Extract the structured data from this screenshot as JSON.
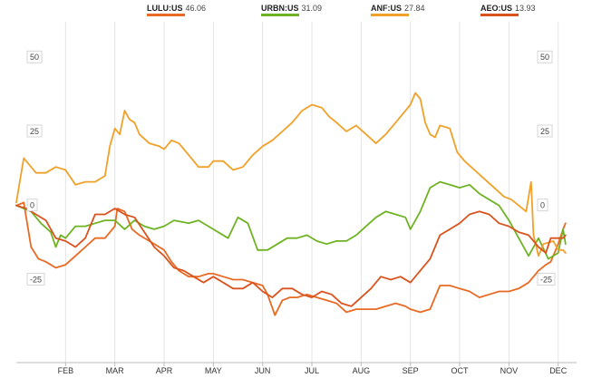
{
  "chart_data": {
    "type": "line",
    "title": "",
    "xlabel": "",
    "ylabel": "",
    "x_range": [
      0,
      11.3
    ],
    "ylim": [
      -53,
      62
    ],
    "y_ticks": [
      50,
      25,
      0,
      -25
    ],
    "y_tick_labels": [
      "50",
      "25",
      "0",
      "-25"
    ],
    "x_ticks": [
      1,
      2,
      3,
      4,
      5,
      6,
      7,
      8,
      9,
      10,
      11
    ],
    "x_tick_labels": [
      "FEB",
      "MAR",
      "APR",
      "MAY",
      "JUN",
      "JUL",
      "AUG",
      "SEP",
      "OCT",
      "NOV",
      "DEC"
    ],
    "legend_position": "top",
    "grid": true,
    "series": [
      {
        "name": "LULU:US",
        "value_label": "46.06",
        "color": "#e86a24",
        "points": [
          [
            0,
            0
          ],
          [
            0.15,
            1
          ],
          [
            0.3,
            -14
          ],
          [
            0.45,
            -18
          ],
          [
            0.6,
            -19
          ],
          [
            0.8,
            -21
          ],
          [
            1,
            -20
          ],
          [
            1.2,
            -17
          ],
          [
            1.4,
            -14
          ],
          [
            1.6,
            -11
          ],
          [
            1.8,
            -11
          ],
          [
            2,
            -7
          ],
          [
            2.05,
            -1
          ],
          [
            2.2,
            -2
          ],
          [
            2.35,
            -8
          ],
          [
            2.5,
            -10
          ],
          [
            2.7,
            -12
          ],
          [
            2.9,
            -14
          ],
          [
            3,
            -15
          ],
          [
            3.15,
            -19
          ],
          [
            3.3,
            -22
          ],
          [
            3.5,
            -24
          ],
          [
            3.7,
            -24
          ],
          [
            3.9,
            -23
          ],
          [
            4,
            -23
          ],
          [
            4.2,
            -24
          ],
          [
            4.4,
            -25
          ],
          [
            4.6,
            -25
          ],
          [
            4.8,
            -26
          ],
          [
            5,
            -27
          ],
          [
            5.1,
            -30
          ],
          [
            5.25,
            -37
          ],
          [
            5.4,
            -32
          ],
          [
            5.55,
            -31
          ],
          [
            5.7,
            -31
          ],
          [
            5.9,
            -30
          ],
          [
            6.1,
            -31
          ],
          [
            6.3,
            -32
          ],
          [
            6.5,
            -33
          ],
          [
            6.7,
            -36
          ],
          [
            6.9,
            -35
          ],
          [
            7.1,
            -35
          ],
          [
            7.3,
            -35
          ],
          [
            7.5,
            -34
          ],
          [
            7.7,
            -33
          ],
          [
            7.9,
            -34
          ],
          [
            8,
            -35
          ],
          [
            8.2,
            -36
          ],
          [
            8.4,
            -35
          ],
          [
            8.6,
            -27
          ],
          [
            8.8,
            -27
          ],
          [
            9,
            -28
          ],
          [
            9.2,
            -29
          ],
          [
            9.4,
            -31
          ],
          [
            9.6,
            -30
          ],
          [
            9.8,
            -29
          ],
          [
            10,
            -29
          ],
          [
            10.2,
            -28
          ],
          [
            10.4,
            -26
          ],
          [
            10.6,
            -22
          ],
          [
            10.75,
            -20
          ],
          [
            10.85,
            -19
          ],
          [
            11.0,
            -13
          ],
          [
            11.1,
            -8
          ],
          [
            11.15,
            -6
          ]
        ]
      },
      {
        "name": "URBN:US",
        "value_label": "31.09",
        "color": "#6fb325",
        "points": [
          [
            0,
            0
          ],
          [
            0.3,
            -2
          ],
          [
            0.5,
            -6
          ],
          [
            0.7,
            -9
          ],
          [
            0.8,
            -14
          ],
          [
            0.9,
            -10
          ],
          [
            1,
            -11
          ],
          [
            1.2,
            -7
          ],
          [
            1.4,
            -7
          ],
          [
            1.6,
            -6
          ],
          [
            1.8,
            -5
          ],
          [
            2,
            -5
          ],
          [
            2.2,
            -8
          ],
          [
            2.4,
            -5
          ],
          [
            2.6,
            -7
          ],
          [
            2.8,
            -8
          ],
          [
            3,
            -7
          ],
          [
            3.2,
            -5
          ],
          [
            3.5,
            -6
          ],
          [
            3.7,
            -5
          ],
          [
            4,
            -8
          ],
          [
            4.3,
            -11
          ],
          [
            4.5,
            -4
          ],
          [
            4.7,
            -6
          ],
          [
            4.9,
            -15
          ],
          [
            5.1,
            -15
          ],
          [
            5.3,
            -13
          ],
          [
            5.5,
            -11
          ],
          [
            5.7,
            -11
          ],
          [
            5.9,
            -10
          ],
          [
            6.1,
            -12
          ],
          [
            6.3,
            -13
          ],
          [
            6.5,
            -12
          ],
          [
            6.7,
            -12
          ],
          [
            6.9,
            -10
          ],
          [
            7.1,
            -7
          ],
          [
            7.3,
            -4
          ],
          [
            7.5,
            -2
          ],
          [
            7.7,
            -3
          ],
          [
            7.9,
            -4
          ],
          [
            8,
            -8
          ],
          [
            8.2,
            -2
          ],
          [
            8.4,
            6
          ],
          [
            8.6,
            8
          ],
          [
            8.8,
            7
          ],
          [
            9,
            6
          ],
          [
            9.2,
            7
          ],
          [
            9.4,
            4
          ],
          [
            9.6,
            2
          ],
          [
            9.8,
            0
          ],
          [
            10,
            -5
          ],
          [
            10.2,
            -11
          ],
          [
            10.4,
            -17
          ],
          [
            10.6,
            -11
          ],
          [
            10.8,
            -18
          ],
          [
            11,
            -16
          ],
          [
            11.1,
            -8
          ],
          [
            11.15,
            -13
          ]
        ]
      },
      {
        "name": "ANF:US",
        "value_label": "27.84",
        "color": "#f0a12a",
        "points": [
          [
            0,
            1
          ],
          [
            0.15,
            16
          ],
          [
            0.4,
            11
          ],
          [
            0.6,
            11
          ],
          [
            0.8,
            13
          ],
          [
            1,
            12
          ],
          [
            1.2,
            7
          ],
          [
            1.4,
            8
          ],
          [
            1.6,
            8
          ],
          [
            1.8,
            10
          ],
          [
            1.9,
            20
          ],
          [
            2,
            26
          ],
          [
            2.1,
            24
          ],
          [
            2.2,
            32
          ],
          [
            2.3,
            29
          ],
          [
            2.4,
            28
          ],
          [
            2.5,
            24
          ],
          [
            2.7,
            21
          ],
          [
            2.9,
            20
          ],
          [
            3,
            19
          ],
          [
            3.15,
            22
          ],
          [
            3.3,
            21
          ],
          [
            3.5,
            17
          ],
          [
            3.7,
            13
          ],
          [
            3.9,
            13
          ],
          [
            4,
            15
          ],
          [
            4.2,
            15
          ],
          [
            4.4,
            12
          ],
          [
            4.6,
            13
          ],
          [
            4.8,
            17
          ],
          [
            5,
            20
          ],
          [
            5.2,
            22
          ],
          [
            5.4,
            25
          ],
          [
            5.6,
            28
          ],
          [
            5.8,
            32
          ],
          [
            6,
            34
          ],
          [
            6.2,
            33
          ],
          [
            6.35,
            30
          ],
          [
            6.5,
            28
          ],
          [
            6.7,
            25
          ],
          [
            6.9,
            27
          ],
          [
            7.1,
            24
          ],
          [
            7.3,
            21
          ],
          [
            7.5,
            24
          ],
          [
            7.7,
            28
          ],
          [
            7.9,
            32
          ],
          [
            8,
            34
          ],
          [
            8.1,
            38
          ],
          [
            8.2,
            36
          ],
          [
            8.3,
            28
          ],
          [
            8.4,
            24
          ],
          [
            8.5,
            23
          ],
          [
            8.6,
            27
          ],
          [
            8.8,
            26
          ],
          [
            8.95,
            18
          ],
          [
            9.1,
            15
          ],
          [
            9.3,
            12
          ],
          [
            9.5,
            9
          ],
          [
            9.7,
            6
          ],
          [
            9.9,
            3
          ],
          [
            10.05,
            2
          ],
          [
            10.2,
            0
          ],
          [
            10.35,
            -2
          ],
          [
            10.45,
            8
          ],
          [
            10.5,
            -10
          ],
          [
            10.6,
            -17
          ],
          [
            10.7,
            -13
          ],
          [
            10.9,
            -12
          ],
          [
            11.0,
            -15
          ],
          [
            11.1,
            -15
          ],
          [
            11.15,
            -16
          ]
        ]
      },
      {
        "name": "AEO:US",
        "value_label": "13.93",
        "color": "#d9531e",
        "points": [
          [
            0,
            0
          ],
          [
            0.2,
            -1
          ],
          [
            0.4,
            -3
          ],
          [
            0.6,
            -5
          ],
          [
            0.8,
            -11
          ],
          [
            1,
            -12
          ],
          [
            1.2,
            -14
          ],
          [
            1.4,
            -11
          ],
          [
            1.6,
            -3
          ],
          [
            1.8,
            -3
          ],
          [
            2,
            -1
          ],
          [
            2.2,
            -3
          ],
          [
            2.4,
            -4
          ],
          [
            2.6,
            -9
          ],
          [
            2.8,
            -14
          ],
          [
            3,
            -17
          ],
          [
            3.2,
            -21
          ],
          [
            3.4,
            -22
          ],
          [
            3.6,
            -24
          ],
          [
            3.8,
            -26
          ],
          [
            4,
            -24
          ],
          [
            4.2,
            -26
          ],
          [
            4.4,
            -28
          ],
          [
            4.6,
            -28
          ],
          [
            4.8,
            -26
          ],
          [
            5,
            -29
          ],
          [
            5.2,
            -31
          ],
          [
            5.4,
            -28
          ],
          [
            5.6,
            -28
          ],
          [
            5.8,
            -30
          ],
          [
            6,
            -31
          ],
          [
            6.2,
            -29
          ],
          [
            6.4,
            -30
          ],
          [
            6.6,
            -33
          ],
          [
            6.8,
            -34
          ],
          [
            7,
            -31
          ],
          [
            7.2,
            -28
          ],
          [
            7.4,
            -24
          ],
          [
            7.6,
            -25
          ],
          [
            7.8,
            -24
          ],
          [
            8,
            -26
          ],
          [
            8.2,
            -22
          ],
          [
            8.4,
            -18
          ],
          [
            8.6,
            -10
          ],
          [
            8.8,
            -8
          ],
          [
            9,
            -6
          ],
          [
            9.2,
            -3
          ],
          [
            9.4,
            -2
          ],
          [
            9.6,
            -3
          ],
          [
            9.8,
            -6
          ],
          [
            10,
            -7
          ],
          [
            10.2,
            -9
          ],
          [
            10.4,
            -10
          ],
          [
            10.6,
            -14
          ],
          [
            10.75,
            -16
          ],
          [
            10.85,
            -11
          ],
          [
            11.0,
            -11
          ],
          [
            11.1,
            -11
          ],
          [
            11.15,
            -10
          ]
        ]
      }
    ]
  }
}
